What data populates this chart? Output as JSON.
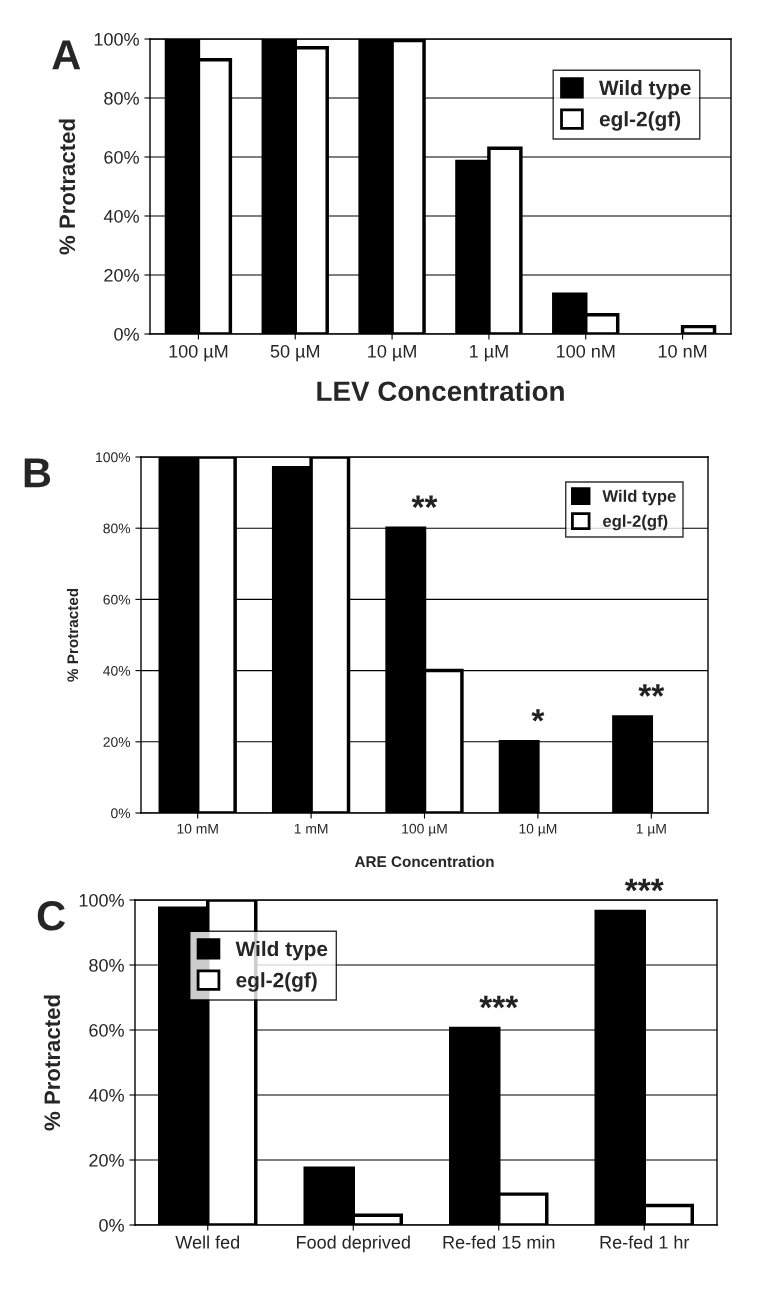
{
  "chart_data": [
    {
      "type": "bar",
      "title": "A",
      "xlabel": "LEV Concentration",
      "ylabel": "% Protracted",
      "categories": [
        "100 µM",
        "50 µM",
        "10 µM",
        "1 µM",
        "100 nM",
        "10 nM"
      ],
      "series": [
        {
          "name": "Wild type",
          "color": "#000000",
          "values": [
            100,
            100,
            100,
            58.5,
            13.5,
            null
          ]
        },
        {
          "name": "egl-2(gf)",
          "color": "#ffffff",
          "values": [
            93,
            97,
            99.5,
            63,
            6.5,
            2.5
          ]
        }
      ],
      "ylim": [
        0,
        100
      ],
      "yticks": [
        {
          "value": 0,
          "label": "0%"
        },
        {
          "value": 20,
          "label": "20%"
        },
        {
          "value": 40,
          "label": "40%"
        },
        {
          "value": 60,
          "label": "60%"
        },
        {
          "value": 80,
          "label": "80%"
        },
        {
          "value": 100,
          "label": "100%"
        }
      ],
      "grid": "y",
      "legend": "top right"
    },
    {
      "type": "bar",
      "title": "B",
      "xlabel": "ARE Concentration",
      "ylabel": "% Protracted",
      "categories": [
        "10 mM",
        "1 mM",
        "100 µM",
        "10 µM",
        "1 µM"
      ],
      "series": [
        {
          "name": "Wild type",
          "color": "#000000",
          "values": [
            100,
            97,
            80,
            20,
            27
          ]
        },
        {
          "name": "egl-2(gf)",
          "color": "#ffffff",
          "values": [
            100,
            100,
            40,
            null,
            null
          ]
        }
      ],
      "ylim": [
        0,
        100
      ],
      "yticks": [
        {
          "value": 0,
          "label": "0%"
        },
        {
          "value": 20,
          "label": "20%"
        },
        {
          "value": 40,
          "label": "40%"
        },
        {
          "value": 60,
          "label": "60%"
        },
        {
          "value": 80,
          "label": "80%"
        },
        {
          "value": 100,
          "label": "100%"
        }
      ],
      "grid": "y",
      "legend": "top right",
      "annotations": [
        {
          "text": "**",
          "x": "100 µM",
          "y": 80
        },
        {
          "text": "*",
          "x": "10 µM",
          "y": 20
        },
        {
          "text": "**",
          "x": "1 µM",
          "y": 27
        }
      ]
    },
    {
      "type": "bar",
      "title": "C",
      "ylabel": "% Protracted",
      "categories": [
        "Well fed",
        "Food deprived",
        "Re-fed 15 min",
        "Re-fed 1 hr"
      ],
      "series": [
        {
          "name": "Wild type",
          "color": "#000000",
          "values": [
            97.5,
            17.5,
            60.5,
            96.5
          ]
        },
        {
          "name": "egl-2(gf)",
          "color": "#ffffff",
          "values": [
            100,
            3,
            9.5,
            6
          ]
        }
      ],
      "ylim": [
        0,
        100
      ],
      "yticks": [
        {
          "value": 0,
          "label": "0%"
        },
        {
          "value": 20,
          "label": "20%"
        },
        {
          "value": 40,
          "label": "40%"
        },
        {
          "value": 60,
          "label": "60%"
        },
        {
          "value": 80,
          "label": "80%"
        },
        {
          "value": 100,
          "label": "100%"
        }
      ],
      "grid": "y",
      "legend": "top",
      "annotations": [
        {
          "text": "***",
          "x": "Re-fed 15 min",
          "y": 60.5
        },
        {
          "text": "***",
          "x": "Re-fed 1 hr",
          "y": 96.5
        }
      ]
    }
  ]
}
